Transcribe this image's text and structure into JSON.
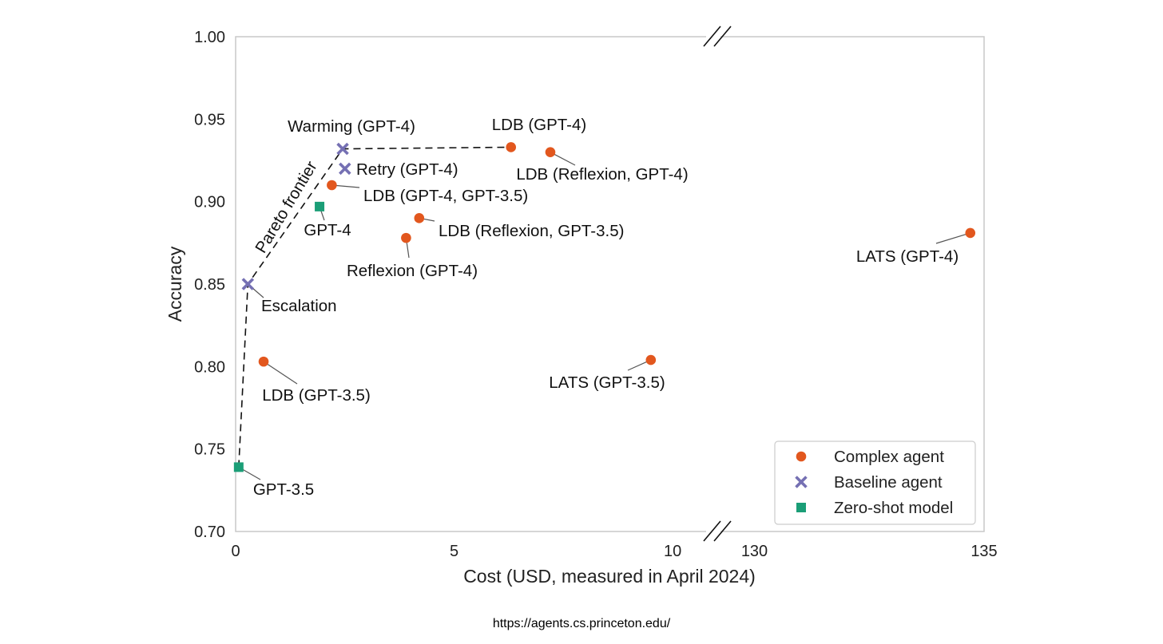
{
  "chart_data": {
    "type": "scatter",
    "xlabel": "Cost (USD, measured in April 2024)",
    "ylabel": "Accuracy",
    "ylim": [
      0.7,
      1.0
    ],
    "x_segments": [
      [
        0,
        10.6
      ],
      [
        129.4,
        135
      ]
    ],
    "x_axis_break": true,
    "grid": false,
    "legend_placement": "bottom-right",
    "x_ticks": [
      {
        "value": 0,
        "label": "0"
      },
      {
        "value": 5,
        "label": "5"
      },
      {
        "value": 10,
        "label": "10"
      },
      {
        "value": 130,
        "label": "130"
      },
      {
        "value": 135,
        "label": "135"
      }
    ],
    "y_ticks": [
      {
        "value": 0.7,
        "label": "0.70"
      },
      {
        "value": 0.75,
        "label": "0.75"
      },
      {
        "value": 0.8,
        "label": "0.80"
      },
      {
        "value": 0.85,
        "label": "0.85"
      },
      {
        "value": 0.9,
        "label": "0.90"
      },
      {
        "value": 0.95,
        "label": "0.95"
      },
      {
        "value": 1.0,
        "label": "1.00"
      }
    ],
    "series": [
      {
        "name": "Complex agent",
        "marker": "circle",
        "color": "#e2571e",
        "points": [
          {
            "label": "LDB (GPT-4)",
            "x": 6.3,
            "y": 0.933
          },
          {
            "label": "LDB (Reflexion, GPT-4)",
            "x": 7.2,
            "y": 0.93
          },
          {
            "label": "LDB (GPT-4, GPT-3.5)",
            "x": 2.2,
            "y": 0.91
          },
          {
            "label": "LDB (Reflexion, GPT-3.5)",
            "x": 4.2,
            "y": 0.89
          },
          {
            "label": "Reflexion (GPT-4)",
            "x": 3.9,
            "y": 0.878
          },
          {
            "label": "LDB (GPT-3.5)",
            "x": 0.64,
            "y": 0.803
          },
          {
            "label": "LATS (GPT-3.5)",
            "x": 9.5,
            "y": 0.804
          },
          {
            "label": "LATS (GPT-4)",
            "x": 134.7,
            "y": 0.881
          }
        ]
      },
      {
        "name": "Baseline agent",
        "marker": "x",
        "color": "#7570b3",
        "points": [
          {
            "label": "Warming (GPT-4)",
            "x": 2.45,
            "y": 0.932
          },
          {
            "label": "Retry (GPT-4)",
            "x": 2.5,
            "y": 0.92
          },
          {
            "label": "Escalation",
            "x": 0.28,
            "y": 0.85
          }
        ]
      },
      {
        "name": "Zero-shot model",
        "marker": "square",
        "color": "#1b9e77",
        "points": [
          {
            "label": "GPT-4",
            "x": 1.92,
            "y": 0.897
          },
          {
            "label": "GPT-3.5",
            "x": 0.07,
            "y": 0.739
          }
        ]
      }
    ],
    "pareto_frontier": {
      "label": "Pareto frontier",
      "points": [
        [
          0.07,
          0.739
        ],
        [
          0.28,
          0.85
        ],
        [
          2.45,
          0.932
        ],
        [
          6.3,
          0.933
        ]
      ]
    }
  },
  "footer": {
    "url": "https://agents.cs.princeton.edu/"
  }
}
